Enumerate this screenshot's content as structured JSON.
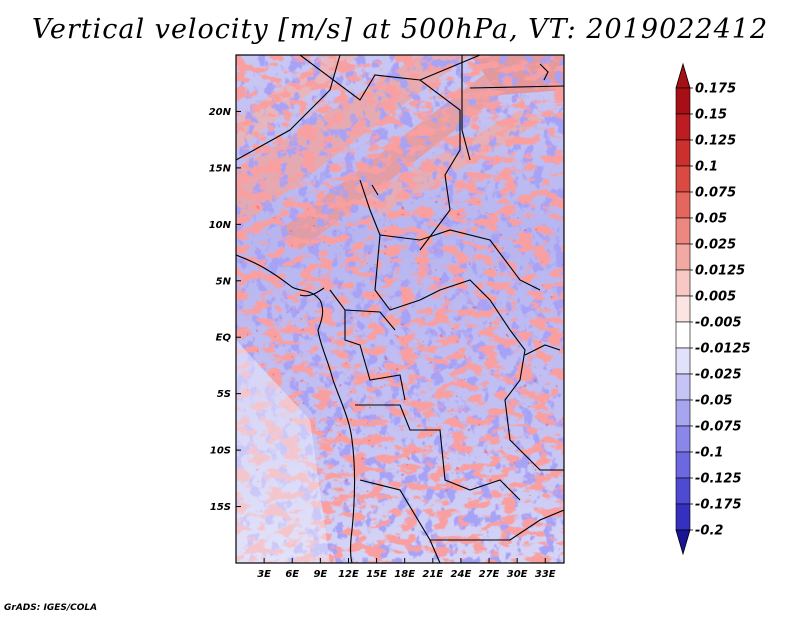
{
  "title": "Vertical velocity [m/s] at 500hPa, VT: 2019022412",
  "credit": "GrADS: IGES/COLA",
  "map": {
    "lon_range": [
      0,
      35
    ],
    "lat_range": [
      -20,
      25
    ],
    "lon_ticks": [
      {
        "value": 3,
        "label": "3E"
      },
      {
        "value": 6,
        "label": "6E"
      },
      {
        "value": 9,
        "label": "9E"
      },
      {
        "value": 12,
        "label": "12E"
      },
      {
        "value": 15,
        "label": "15E"
      },
      {
        "value": 18,
        "label": "18E"
      },
      {
        "value": 21,
        "label": "21E"
      },
      {
        "value": 24,
        "label": "24E"
      },
      {
        "value": 27,
        "label": "27E"
      },
      {
        "value": 30,
        "label": "30E"
      },
      {
        "value": 33,
        "label": "33E"
      }
    ],
    "lat_ticks": [
      {
        "value": 20,
        "label": "20N"
      },
      {
        "value": 15,
        "label": "15N"
      },
      {
        "value": 10,
        "label": "10N"
      },
      {
        "value": 5,
        "label": "5N"
      },
      {
        "value": 0,
        "label": "EQ"
      },
      {
        "value": -5,
        "label": "5S"
      },
      {
        "value": -10,
        "label": "10S"
      },
      {
        "value": -15,
        "label": "15S"
      }
    ]
  },
  "colorbar": {
    "levels": [
      {
        "label": "0.175",
        "color": "#a50f15"
      },
      {
        "label": "0.15",
        "color": "#bb1d22"
      },
      {
        "label": "0.125",
        "color": "#cb2f2e"
      },
      {
        "label": "0.1",
        "color": "#d94a43"
      },
      {
        "label": "0.075",
        "color": "#e4665c"
      },
      {
        "label": "0.05",
        "color": "#ec8880"
      },
      {
        "label": "0.025",
        "color": "#f3a9a3"
      },
      {
        "label": "0.0125",
        "color": "#f8c8c4"
      },
      {
        "label": "0.005",
        "color": "#fce4e2"
      },
      {
        "label": "-0.005",
        "color": "#ffffff"
      },
      {
        "label": "-0.0125",
        "color": "#e2e1fb"
      },
      {
        "label": "-0.025",
        "color": "#c6c4f6"
      },
      {
        "label": "-0.05",
        "color": "#a8a5f0"
      },
      {
        "label": "-0.075",
        "color": "#8b87ea"
      },
      {
        "label": "-0.1",
        "color": "#6c68e0"
      },
      {
        "label": "-0.125",
        "color": "#4f4ad2"
      },
      {
        "label": "-0.175",
        "color": "#3530c0"
      },
      {
        "label": "-0.2",
        "color": "#1f1aa8"
      }
    ],
    "bottom_color": "#1a1496",
    "top_color": "#a50f15"
  }
}
